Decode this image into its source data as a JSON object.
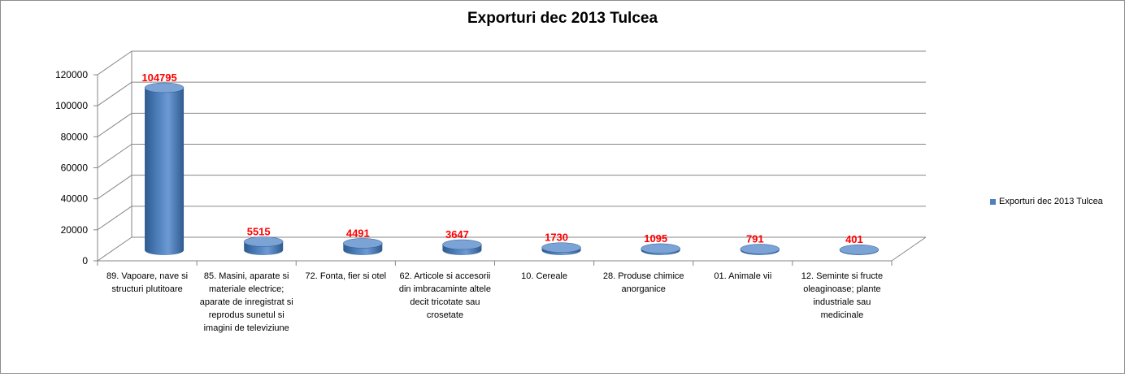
{
  "chart_data": {
    "type": "bar",
    "title": "Exporturi  dec 2013 Tulcea",
    "categories": [
      "89. Vapoare, nave si structuri plutitoare",
      "85. Masini, aparate si materiale electrice; aparate de inregistrat si reprodus sunetul si imagini de televiziune",
      "72. Fonta, fier si otel",
      "62. Articole si accesorii din imbracaminte altele decit tricotate sau crosetate",
      "10. Cereale",
      "28. Produse chimice anorganice",
      "01. Animale vii",
      "12. Seminte si fructe oleaginoase; plante industriale sau medicinale"
    ],
    "series": [
      {
        "name": "Exporturi  dec 2013 Tulcea",
        "values": [
          104795,
          5515,
          4491,
          3647,
          1730,
          1095,
          791,
          401
        ]
      }
    ],
    "ylim": [
      0,
      120000
    ],
    "yticks": [
      0,
      20000,
      40000,
      60000,
      80000,
      100000,
      120000
    ],
    "xlabel": "",
    "ylabel": "",
    "grid": true,
    "legend_position": "right",
    "bar_shape": "cylinder-3d",
    "colors": {
      "bar": "#4f81bd",
      "bar_dark": "#2e5a8f",
      "bar_light": "#7ba3d6",
      "data_label": "#ff0000",
      "grid": "#868686"
    }
  }
}
